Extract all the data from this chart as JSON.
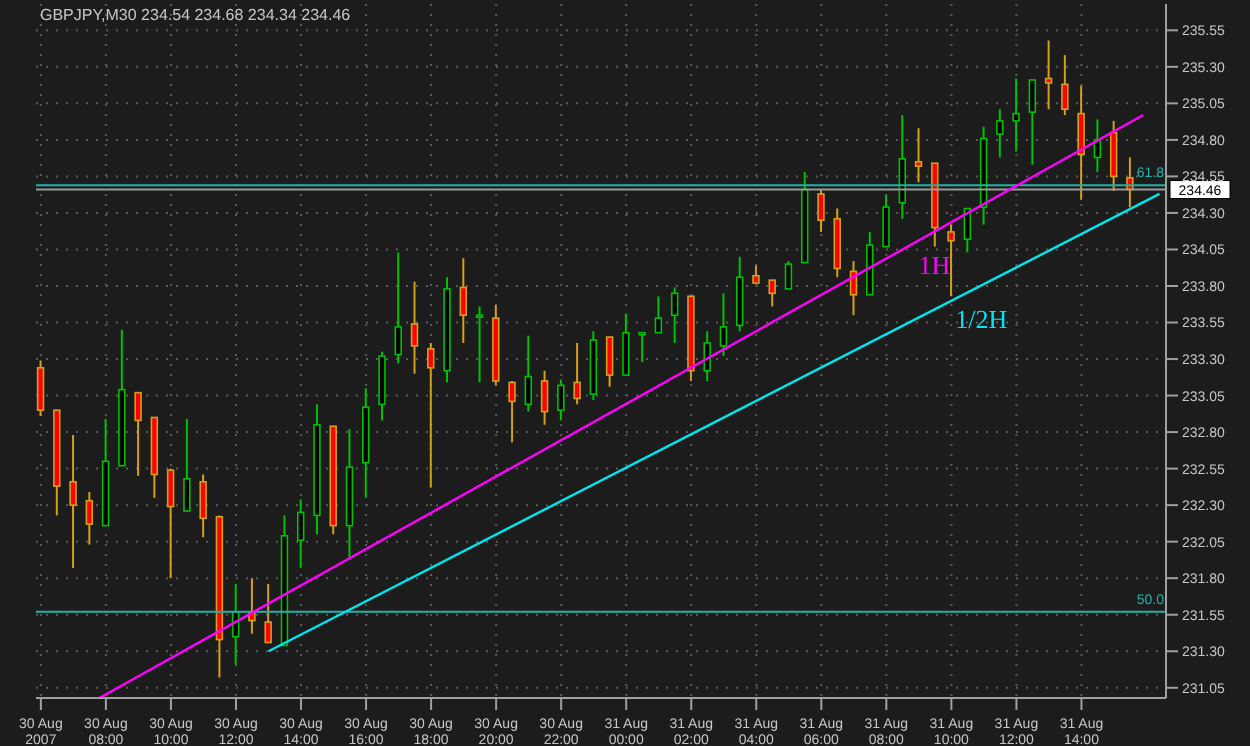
{
  "chart_data": {
    "type": "candlestick",
    "title": "GBPJPY,M30 234.54 234.68 234.34 234.46",
    "x": [
      "2007-08-30T06:00",
      "2007-08-30T06:30",
      "2007-08-30T07:00",
      "2007-08-30T07:30",
      "2007-08-30T08:00",
      "2007-08-30T08:30",
      "2007-08-30T09:00",
      "2007-08-30T09:30",
      "2007-08-30T10:00",
      "2007-08-30T10:30",
      "2007-08-30T11:00",
      "2007-08-30T11:30",
      "2007-08-30T12:00",
      "2007-08-30T12:30",
      "2007-08-30T13:00",
      "2007-08-30T13:30",
      "2007-08-30T14:00",
      "2007-08-30T14:30",
      "2007-08-30T15:00",
      "2007-08-30T15:30",
      "2007-08-30T16:00",
      "2007-08-30T16:30",
      "2007-08-30T17:00",
      "2007-08-30T17:30",
      "2007-08-30T18:00",
      "2007-08-30T18:30",
      "2007-08-30T19:00",
      "2007-08-30T19:30",
      "2007-08-30T20:00",
      "2007-08-30T20:30",
      "2007-08-30T21:00",
      "2007-08-30T21:30",
      "2007-08-30T22:00",
      "2007-08-30T22:30",
      "2007-08-30T23:00",
      "2007-08-30T23:30",
      "2007-08-31T00:00",
      "2007-08-31T00:30",
      "2007-08-31T01:00",
      "2007-08-31T01:30",
      "2007-08-31T02:00",
      "2007-08-31T02:30",
      "2007-08-31T03:00",
      "2007-08-31T03:30",
      "2007-08-31T04:00",
      "2007-08-31T04:30",
      "2007-08-31T05:00",
      "2007-08-31T05:30",
      "2007-08-31T06:00",
      "2007-08-31T06:30",
      "2007-08-31T07:00",
      "2007-08-31T07:30",
      "2007-08-31T08:00",
      "2007-08-31T08:30",
      "2007-08-31T09:00",
      "2007-08-31T09:30",
      "2007-08-31T10:00",
      "2007-08-31T10:30",
      "2007-08-31T11:00",
      "2007-08-31T11:30",
      "2007-08-31T12:00",
      "2007-08-31T12:30",
      "2007-08-31T13:00",
      "2007-08-31T13:30",
      "2007-08-31T14:00",
      "2007-08-31T14:30",
      "2007-08-31T15:00",
      "2007-08-31T15:30"
    ],
    "ohlc": [
      [
        233.24,
        233.29,
        232.91,
        232.95
      ],
      [
        232.95,
        232.95,
        232.23,
        232.43
      ],
      [
        232.46,
        232.78,
        231.87,
        232.3
      ],
      [
        232.33,
        232.39,
        232.03,
        232.17
      ],
      [
        232.16,
        232.89,
        232.16,
        232.6
      ],
      [
        232.57,
        233.5,
        232.57,
        233.09
      ],
      [
        233.07,
        233.07,
        232.5,
        232.88
      ],
      [
        232.9,
        232.9,
        232.35,
        232.51
      ],
      [
        232.54,
        232.55,
        231.8,
        232.29
      ],
      [
        232.26,
        232.89,
        232.26,
        232.48
      ],
      [
        232.46,
        232.51,
        232.08,
        232.21
      ],
      [
        232.22,
        232.23,
        231.12,
        231.38
      ],
      [
        231.4,
        231.76,
        231.21,
        231.57
      ],
      [
        231.57,
        231.8,
        231.42,
        231.51
      ],
      [
        231.5,
        231.76,
        231.36,
        231.36
      ],
      [
        231.34,
        232.23,
        231.34,
        232.09
      ],
      [
        232.06,
        232.34,
        231.87,
        232.25
      ],
      [
        232.23,
        232.99,
        232.1,
        232.85
      ],
      [
        232.84,
        232.84,
        232.1,
        232.16
      ],
      [
        232.16,
        232.82,
        231.93,
        232.56
      ],
      [
        232.59,
        233.1,
        232.35,
        232.97
      ],
      [
        232.99,
        233.35,
        232.88,
        233.32
      ],
      [
        233.33,
        234.03,
        233.27,
        233.52
      ],
      [
        233.54,
        233.83,
        233.2,
        233.39
      ],
      [
        233.37,
        233.41,
        232.42,
        233.24
      ],
      [
        233.22,
        233.86,
        233.14,
        233.78
      ],
      [
        233.79,
        233.99,
        233.41,
        233.6
      ],
      [
        233.59,
        233.66,
        233.14,
        233.6
      ],
      [
        233.58,
        233.67,
        233.12,
        233.15
      ],
      [
        233.14,
        233.15,
        232.73,
        233.01
      ],
      [
        232.99,
        233.46,
        232.94,
        233.18
      ],
      [
        233.15,
        233.22,
        232.85,
        232.94
      ],
      [
        232.95,
        233.16,
        232.88,
        233.12
      ],
      [
        233.14,
        233.41,
        232.99,
        233.03
      ],
      [
        233.06,
        233.49,
        233.02,
        233.43
      ],
      [
        233.45,
        233.45,
        233.11,
        233.19
      ],
      [
        233.19,
        233.61,
        233.19,
        233.48
      ],
      [
        233.47,
        233.48,
        233.28,
        233.48
      ],
      [
        233.48,
        233.73,
        233.48,
        233.58
      ],
      [
        233.6,
        233.79,
        233.41,
        233.75
      ],
      [
        233.73,
        233.73,
        233.15,
        233.22
      ],
      [
        233.22,
        233.49,
        233.15,
        233.41
      ],
      [
        233.39,
        233.75,
        233.32,
        233.52
      ],
      [
        233.53,
        234.0,
        233.49,
        233.86
      ],
      [
        233.87,
        233.94,
        233.82,
        233.82
      ],
      [
        233.84,
        233.84,
        233.66,
        233.75
      ],
      [
        233.78,
        233.97,
        233.78,
        233.95
      ],
      [
        233.96,
        234.58,
        233.96,
        234.46
      ],
      [
        234.43,
        234.46,
        234.17,
        234.25
      ],
      [
        234.26,
        234.33,
        233.86,
        233.92
      ],
      [
        233.9,
        233.97,
        233.6,
        233.74
      ],
      [
        233.74,
        234.17,
        233.74,
        234.08
      ],
      [
        234.07,
        234.42,
        234.07,
        234.34
      ],
      [
        234.37,
        234.97,
        234.26,
        234.67
      ],
      [
        234.65,
        234.88,
        234.51,
        234.62
      ],
      [
        234.64,
        234.64,
        234.07,
        234.2
      ],
      [
        234.17,
        234.22,
        233.73,
        234.11
      ],
      [
        234.12,
        234.33,
        234.03,
        234.33
      ],
      [
        234.34,
        234.89,
        234.22,
        234.81
      ],
      [
        234.84,
        235.01,
        234.68,
        234.93
      ],
      [
        234.93,
        235.22,
        234.72,
        234.98
      ],
      [
        234.99,
        235.21,
        234.63,
        235.21
      ],
      [
        235.22,
        235.48,
        235.01,
        235.19
      ],
      [
        235.18,
        235.38,
        234.97,
        235.01
      ],
      [
        234.98,
        235.17,
        234.39,
        234.7
      ],
      [
        234.68,
        234.94,
        234.58,
        234.8
      ],
      [
        234.85,
        234.93,
        234.45,
        234.55
      ],
      [
        234.54,
        234.68,
        234.34,
        234.46
      ]
    ],
    "colors": [
      "#ff0000",
      "#ff0000",
      "#ff0000",
      "#ff0000",
      "#00c000",
      "#00c000",
      "#ff0000",
      "#ff0000",
      "#ff0000",
      "#00c000",
      "#ff0000",
      "#ff0000",
      "#00c000",
      "#ff0000",
      "#ff0000",
      "#00c000",
      "#00c000",
      "#00c000",
      "#ff0000",
      "#00c000",
      "#00c000",
      "#00c000",
      "#00c000",
      "#ff0000",
      "#ff0000",
      "#00c000",
      "#ff0000",
      "#00c000",
      "#ff0000",
      "#ff0000",
      "#00c000",
      "#ff0000",
      "#00c000",
      "#ff0000",
      "#00c000",
      "#ff0000",
      "#00c000",
      "#00c000",
      "#00c000",
      "#00c000",
      "#ff0000",
      "#00c000",
      "#00c000",
      "#00c000",
      "#ff0000",
      "#ff0000",
      "#00c000",
      "#00c000",
      "#ff0000",
      "#ff0000",
      "#ff0000",
      "#00c000",
      "#00c000",
      "#00c000",
      "#ff0000",
      "#ff0000",
      "#ff0000",
      "#00c000",
      "#00c000",
      "#00c000",
      "#00c000",
      "#00c000",
      "#ff0000",
      "#ff0000",
      "#ff0000",
      "#00c000",
      "#ff0000",
      "#ff0000"
    ],
    "series": [
      {
        "type": "line",
        "color": "#ff00ff",
        "x": [
          "2007-08-30T07:48",
          "2007-08-31T15:54"
        ],
        "values": [
          230.98,
          234.97
        ]
      },
      {
        "type": "line",
        "color": "#00e5ee",
        "x": [
          "2007-08-30T13:00",
          "2007-08-31T16:24"
        ],
        "values": [
          231.3,
          234.43
        ]
      }
    ],
    "annotations": [
      "1H",
      "1/2H",
      "61.8",
      "50.0"
    ],
    "ref_lines": [
      {
        "axis": "y",
        "value": 234.49,
        "color": "#20b2aa"
      },
      {
        "axis": "y",
        "value": 231.57,
        "color": "#20b2aa"
      },
      {
        "axis": "y",
        "value": 234.46,
        "label": "234.46",
        "color": "#9a9a9a"
      }
    ],
    "xlim": [
      "2007-08-30T05:51",
      "2007-08-31T16:36"
    ],
    "xticks": [
      {
        "value": "2007-08-30T06:00",
        "label": "30 Aug 2007"
      },
      {
        "value": "2007-08-30T08:00",
        "label": "30 Aug 08:00"
      },
      {
        "value": "2007-08-30T10:00",
        "label": "30 Aug 10:00"
      },
      {
        "value": "2007-08-30T12:00",
        "label": "30 Aug 12:00"
      },
      {
        "value": "2007-08-30T14:00",
        "label": "30 Aug 14:00"
      },
      {
        "value": "2007-08-30T16:00",
        "label": "30 Aug 16:00"
      },
      {
        "value": "2007-08-30T18:00",
        "label": "30 Aug 18:00"
      },
      {
        "value": "2007-08-30T20:00",
        "label": "30 Aug 20:00"
      },
      {
        "value": "2007-08-30T22:00",
        "label": "30 Aug 22:00"
      },
      {
        "value": "2007-08-31T00:00",
        "label": "31 Aug 00:00"
      },
      {
        "value": "2007-08-31T02:00",
        "label": "31 Aug 02:00"
      },
      {
        "value": "2007-08-31T04:00",
        "label": "31 Aug 04:00"
      },
      {
        "value": "2007-08-31T06:00",
        "label": "31 Aug 06:00"
      },
      {
        "value": "2007-08-31T08:00",
        "label": "31 Aug 08:00"
      },
      {
        "value": "2007-08-31T10:00",
        "label": "31 Aug 10:00"
      },
      {
        "value": "2007-08-31T12:00",
        "label": "31 Aug 12:00"
      },
      {
        "value": "2007-08-31T14:00",
        "label": "31 Aug 14:00"
      }
    ],
    "ylim": [
      230.98,
      235.73
    ],
    "yticks": [
      235.55,
      {
        "value": 235.3,
        "label": "235.30"
      },
      235.05,
      {
        "value": 234.8,
        "label": "234.80"
      },
      234.55,
      {
        "value": 234.3,
        "label": "234.30"
      },
      234.05,
      {
        "value": 233.8,
        "label": "233.80"
      },
      233.55,
      {
        "value": 233.3,
        "label": "233.30"
      },
      233.05,
      {
        "value": 232.8,
        "label": "232.80"
      },
      232.55,
      {
        "value": 232.3,
        "label": "232.30"
      },
      232.05,
      {
        "value": 231.8,
        "label": "231.80"
      },
      231.55,
      {
        "value": 231.3,
        "label": "231.30"
      },
      231.05
    ],
    "grid": true
  }
}
